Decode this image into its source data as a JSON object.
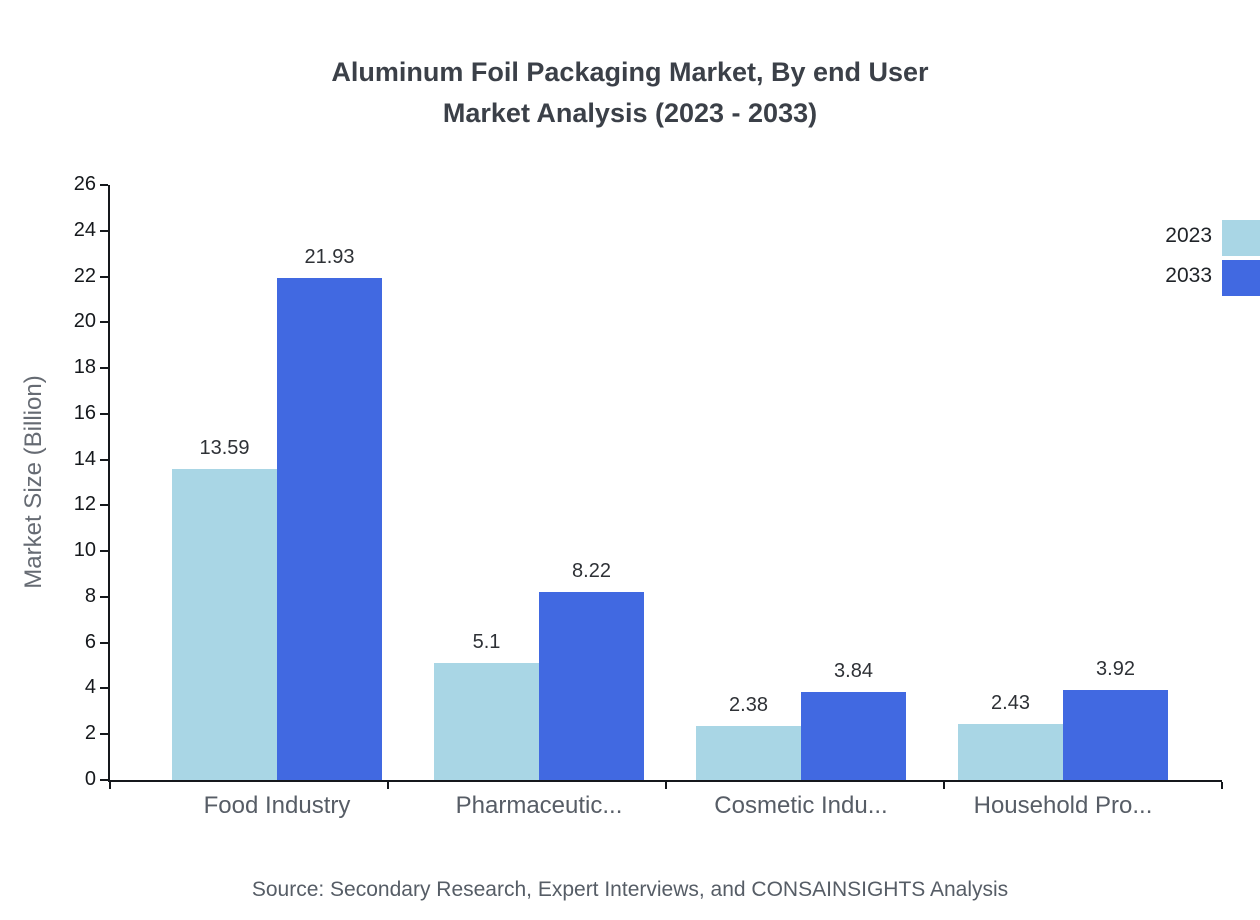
{
  "title": {
    "line1": "Aluminum Foil Packaging Market, By end User",
    "line2": "Market Analysis (2023 - 2033)"
  },
  "source": "Source: Secondary Research, Expert Interviews, and CONSAINSIGHTS Analysis",
  "legend": [
    {
      "label": "2023",
      "color": "#a9d6e5"
    },
    {
      "label": "2033",
      "color": "#4169e1"
    }
  ],
  "chart_data": {
    "type": "bar",
    "title": "Aluminum Foil Packaging Market, By end User Market Analysis (2023 - 2033)",
    "categories": [
      "Food Industry",
      "Pharmaceutic...",
      "Cosmetic Indu...",
      "Household Pro..."
    ],
    "series": [
      {
        "name": "2023",
        "color": "#a9d6e5",
        "values": [
          13.59,
          5.1,
          2.38,
          2.43
        ]
      },
      {
        "name": "2033",
        "color": "#4169e1",
        "values": [
          21.93,
          8.22,
          3.84,
          3.92
        ]
      }
    ],
    "xlabel": "",
    "ylabel": "Market Size (Billion)",
    "ylim": [
      0,
      26
    ],
    "ytick_step": 2,
    "grid": false,
    "legend_position": "top-right"
  }
}
